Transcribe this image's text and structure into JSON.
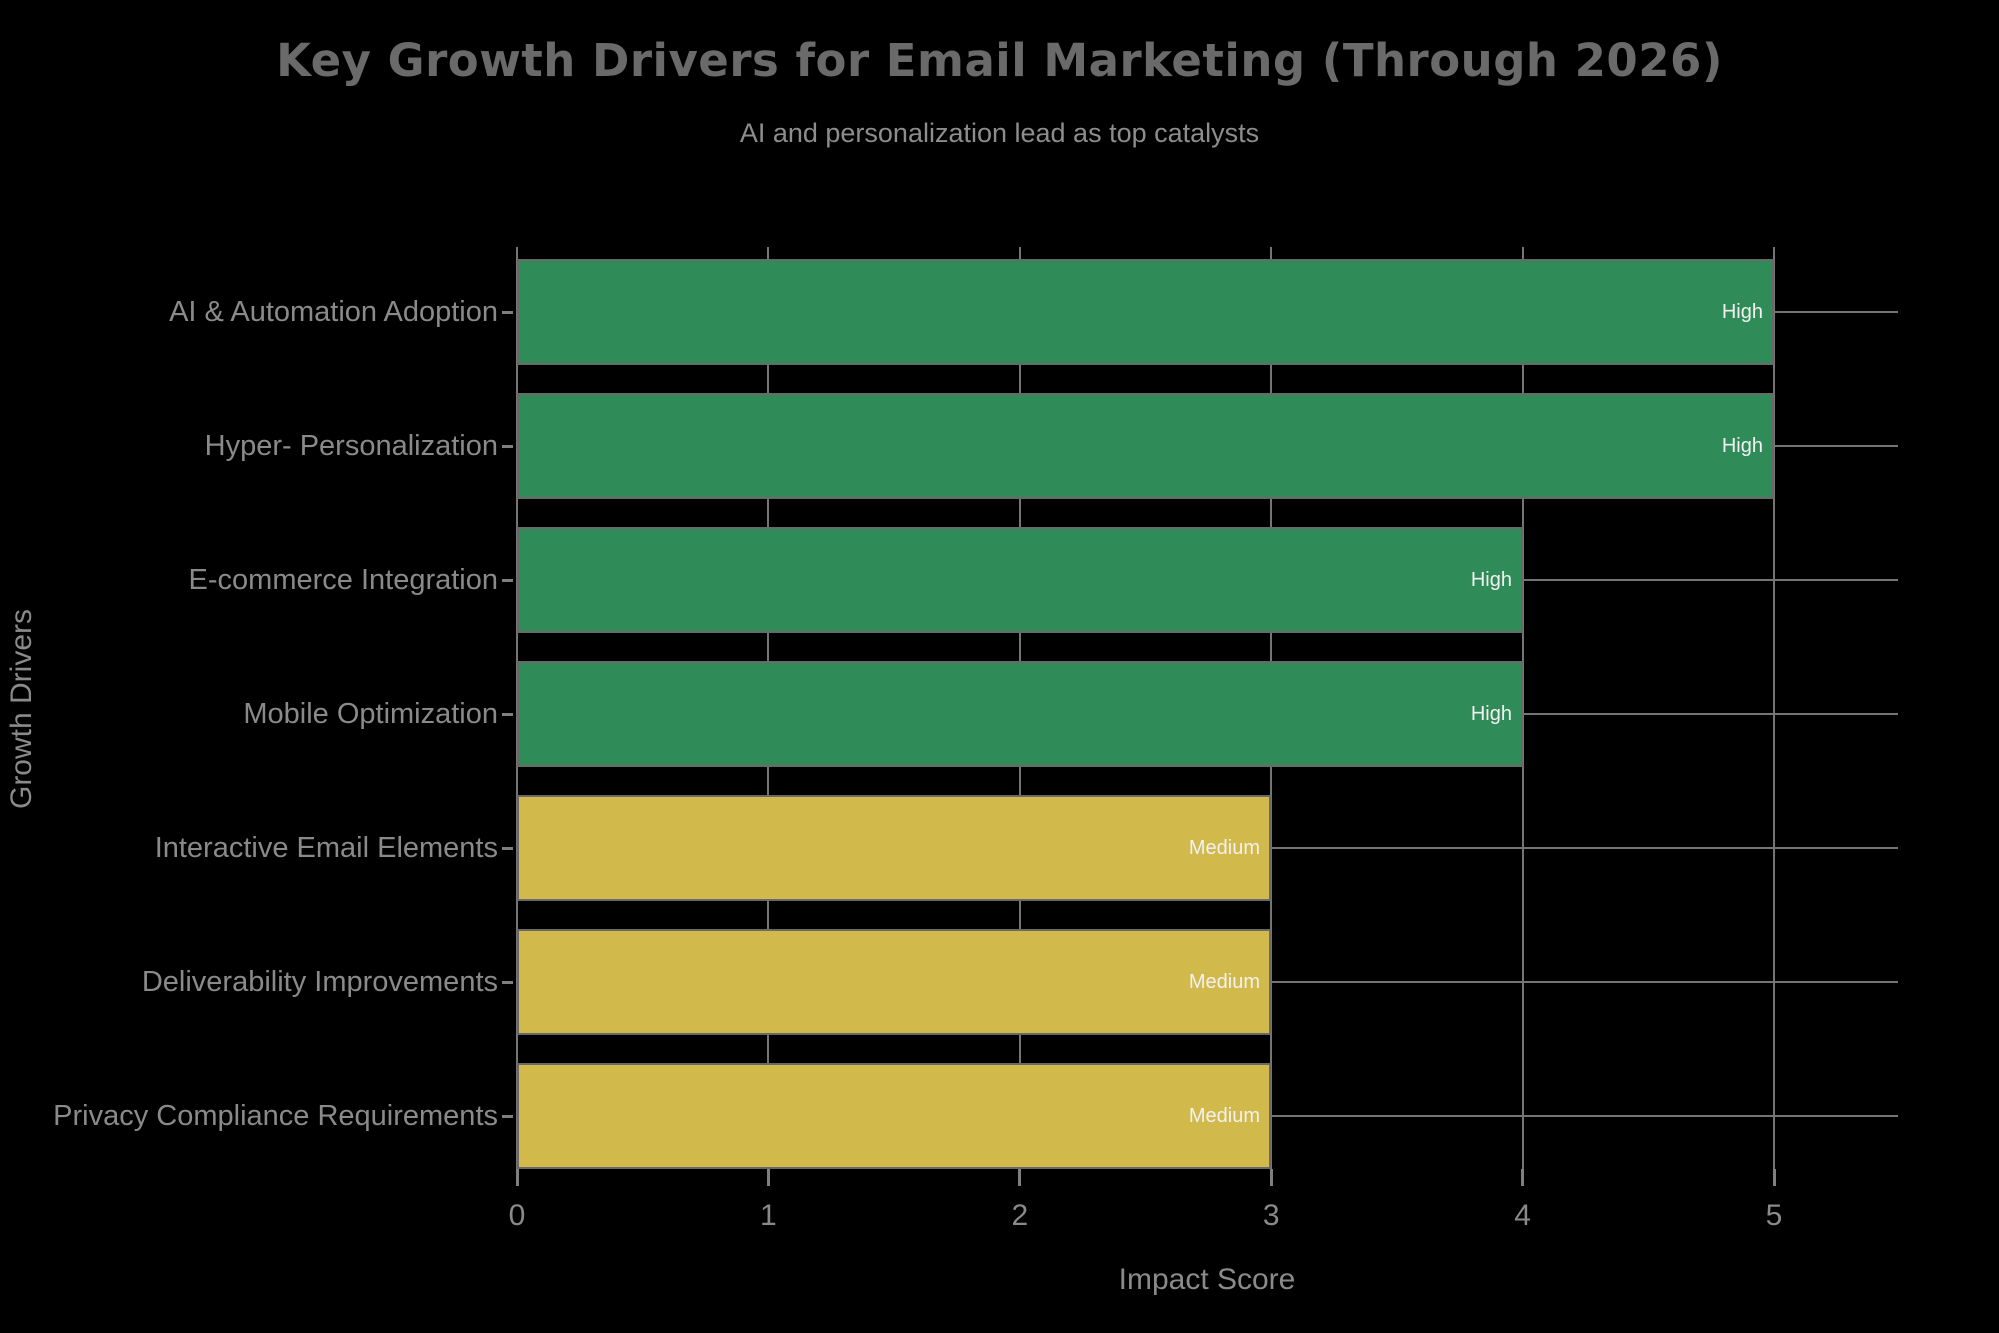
{
  "chart_data": {
    "type": "bar",
    "orientation": "horizontal",
    "title": "Key Growth Drivers for Email Marketing (Through 2026)",
    "subtitle": "AI and personalization lead as top catalysts",
    "xlabel": "Impact Score",
    "ylabel": "Growth Drivers",
    "categories": [
      "AI & Automation Adoption",
      "Hyper- Personalization",
      "E-commerce Integration",
      "Mobile Optimization",
      "Interactive Email Elements",
      "Deliverability Improvements",
      "Privacy Compliance Requirements"
    ],
    "values": [
      5,
      5,
      4,
      4,
      3,
      3,
      3
    ],
    "bar_labels": [
      "High",
      "High",
      "High",
      "High",
      "Medium",
      "Medium",
      "Medium"
    ],
    "x_ticks": [
      0,
      1,
      2,
      3,
      4,
      5
    ],
    "xlim": [
      0,
      5.49
    ],
    "grid": true,
    "legend": false,
    "colors": {
      "high_bar": "#2F8C58",
      "medium_bar": "#D2B94C",
      "background": "#000000",
      "gridline": "#757575",
      "bar_edge": "#696969",
      "title_text": "#6a6a6a",
      "subtitle_text": "#8d8d8d",
      "axis_text": "#8a8a8a",
      "bar_label_text": "#f1f1f1"
    },
    "level_color_map": {
      "High": "#2F8C58",
      "Medium": "#D2B94C"
    }
  }
}
